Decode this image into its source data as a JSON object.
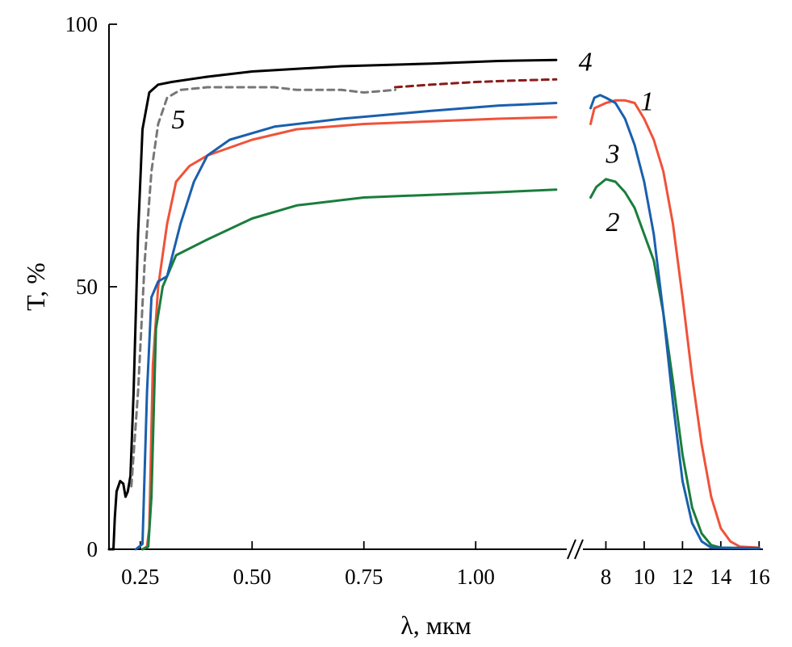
{
  "chart_data": {
    "type": "line",
    "title": "",
    "xlabel": "λ, мкм",
    "ylabel": "T, %",
    "ylim": [
      0,
      100
    ],
    "yticks": [
      {
        "value": 0,
        "label": "0"
      },
      {
        "value": 50,
        "label": "50"
      },
      {
        "value": 100,
        "label": "100"
      }
    ],
    "x_segments": [
      {
        "name": "uv-vis-nir",
        "xlim": [
          0.18,
          1.2
        ],
        "ticks": [
          {
            "value": 0.25,
            "label": "0.25"
          },
          {
            "value": 0.5,
            "label": "0.50"
          },
          {
            "value": 0.75,
            "label": "0.75"
          },
          {
            "value": 1.0,
            "label": "1.00"
          }
        ]
      },
      {
        "name": "ir",
        "xlim": [
          6.8,
          16.2
        ],
        "ticks": [
          {
            "value": 8,
            "label": "8"
          },
          {
            "value": 10,
            "label": "10"
          },
          {
            "value": 12,
            "label": "12"
          },
          {
            "value": 14,
            "label": "14"
          },
          {
            "value": 16,
            "label": "16"
          }
        ]
      }
    ],
    "axis_break": true,
    "grid": false,
    "legend": "none",
    "series": [
      {
        "name": "1",
        "color": "#f0523a",
        "style": "solid",
        "segments": [
          [
            [
              0.255,
              0
            ],
            [
              0.265,
              0.5
            ],
            [
              0.27,
              4
            ],
            [
              0.278,
              35
            ],
            [
              0.29,
              50
            ],
            [
              0.31,
              62
            ],
            [
              0.33,
              70
            ],
            [
              0.36,
              73
            ],
            [
              0.4,
              75
            ],
            [
              0.5,
              78
            ],
            [
              0.6,
              80
            ],
            [
              0.75,
              81
            ],
            [
              0.9,
              81.5
            ],
            [
              1.05,
              82
            ],
            [
              1.18,
              82.3
            ]
          ],
          [
            [
              7.2,
              81
            ],
            [
              7.4,
              84
            ],
            [
              7.7,
              84.5
            ],
            [
              8.0,
              85
            ],
            [
              8.5,
              85.5
            ],
            [
              9.0,
              85.5
            ],
            [
              9.5,
              85
            ],
            [
              10.0,
              82
            ],
            [
              10.5,
              78
            ],
            [
              11.0,
              72
            ],
            [
              11.5,
              62
            ],
            [
              12.0,
              48
            ],
            [
              12.5,
              33
            ],
            [
              13.0,
              20
            ],
            [
              13.5,
              10
            ],
            [
              14.0,
              4
            ],
            [
              14.5,
              1.5
            ],
            [
              15.0,
              0.5
            ],
            [
              16.0,
              0.3
            ]
          ]
        ]
      },
      {
        "name": "2",
        "color": "#1a7d3c",
        "style": "solid",
        "segments": [
          [
            [
              0.255,
              0
            ],
            [
              0.268,
              0.5
            ],
            [
              0.275,
              10
            ],
            [
              0.285,
              42
            ],
            [
              0.3,
              50
            ],
            [
              0.33,
              56
            ],
            [
              0.4,
              59
            ],
            [
              0.5,
              63
            ],
            [
              0.6,
              65.5
            ],
            [
              0.75,
              67
            ],
            [
              0.9,
              67.5
            ],
            [
              1.05,
              68
            ],
            [
              1.18,
              68.5
            ]
          ],
          [
            [
              7.2,
              67
            ],
            [
              7.5,
              69
            ],
            [
              8.0,
              70.5
            ],
            [
              8.5,
              70
            ],
            [
              9.0,
              68
            ],
            [
              9.5,
              65
            ],
            [
              10.0,
              60
            ],
            [
              10.5,
              55
            ],
            [
              11.0,
              45
            ],
            [
              11.5,
              32
            ],
            [
              12.0,
              18
            ],
            [
              12.5,
              8
            ],
            [
              13.0,
              3
            ],
            [
              13.5,
              0.8
            ],
            [
              14.0,
              0.3
            ],
            [
              16.0,
              0.2
            ]
          ]
        ]
      },
      {
        "name": "3",
        "color": "#1a5fad",
        "style": "solid",
        "segments": [
          [
            [
              0.24,
              0
            ],
            [
              0.255,
              1
            ],
            [
              0.265,
              30
            ],
            [
              0.275,
              48
            ],
            [
              0.29,
              51
            ],
            [
              0.31,
              52
            ],
            [
              0.34,
              62
            ],
            [
              0.37,
              70
            ],
            [
              0.4,
              75
            ],
            [
              0.45,
              78
            ],
            [
              0.55,
              80.5
            ],
            [
              0.7,
              82
            ],
            [
              0.9,
              83.5
            ],
            [
              1.05,
              84.5
            ],
            [
              1.18,
              85
            ]
          ],
          [
            [
              7.2,
              84
            ],
            [
              7.4,
              86
            ],
            [
              7.7,
              86.5
            ],
            [
              8.0,
              86
            ],
            [
              8.5,
              85
            ],
            [
              9.0,
              82
            ],
            [
              9.5,
              77
            ],
            [
              10.0,
              70
            ],
            [
              10.5,
              60
            ],
            [
              11.0,
              45
            ],
            [
              11.5,
              28
            ],
            [
              12.0,
              13
            ],
            [
              12.5,
              5
            ],
            [
              13.0,
              1.5
            ],
            [
              13.5,
              0.3
            ],
            [
              16.0,
              0.2
            ]
          ]
        ]
      },
      {
        "name": "4",
        "color": "#000000",
        "style": "solid",
        "segments": [
          [
            [
              0.18,
              0
            ],
            [
              0.19,
              0
            ],
            [
              0.193,
              6
            ],
            [
              0.197,
              11
            ],
            [
              0.205,
              13
            ],
            [
              0.212,
              12.5
            ],
            [
              0.217,
              10
            ],
            [
              0.222,
              11
            ],
            [
              0.228,
              14
            ],
            [
              0.235,
              30
            ],
            [
              0.245,
              60
            ],
            [
              0.255,
              80
            ],
            [
              0.27,
              87
            ],
            [
              0.29,
              88.5
            ],
            [
              0.32,
              89
            ],
            [
              0.4,
              90
            ],
            [
              0.5,
              91
            ],
            [
              0.7,
              92
            ],
            [
              0.9,
              92.5
            ],
            [
              1.05,
              93
            ],
            [
              1.18,
              93.2
            ]
          ]
        ]
      },
      {
        "name": "5",
        "color": "#777777",
        "style": "dashed",
        "segments": [
          [
            [
              0.23,
              12
            ],
            [
              0.245,
              30
            ],
            [
              0.26,
              55
            ],
            [
              0.275,
              72
            ],
            [
              0.29,
              81
            ],
            [
              0.31,
              86
            ],
            [
              0.34,
              87.5
            ],
            [
              0.4,
              88
            ],
            [
              0.5,
              88
            ],
            [
              0.55,
              88
            ],
            [
              0.6,
              87.5
            ],
            [
              0.7,
              87.5
            ],
            [
              0.75,
              87
            ],
            [
              0.82,
              87.5
            ]
          ]
        ]
      },
      {
        "name": "5-ext",
        "color": "#8b1a1a",
        "style": "dashed",
        "segments": [
          [
            [
              0.82,
              88
            ],
            [
              0.9,
              88.5
            ],
            [
              1.0,
              89
            ],
            [
              1.1,
              89.3
            ],
            [
              1.18,
              89.5
            ]
          ]
        ]
      }
    ],
    "annotations": [
      {
        "text": "4",
        "x": 1.23,
        "y": 93
      },
      {
        "text": "5",
        "x": 0.32,
        "y": 82
      },
      {
        "text": "1",
        "x": 9.8,
        "y": 85.5
      },
      {
        "text": "3",
        "x": 8.0,
        "y": 75.5
      },
      {
        "text": "2",
        "x": 8.0,
        "y": 62.5
      }
    ]
  }
}
